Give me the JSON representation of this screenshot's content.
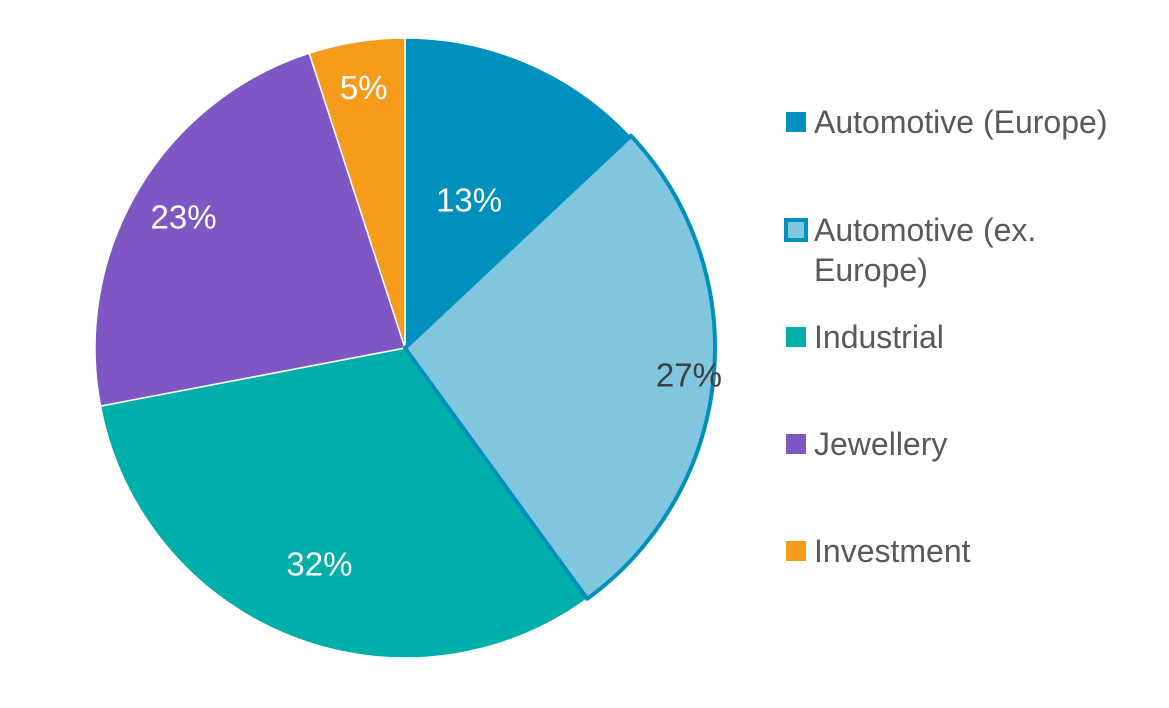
{
  "chart_data": {
    "type": "pie",
    "title": "",
    "categories": [
      "Automotive (Europe)",
      "Automotive (ex. Europe)",
      "Industrial",
      "Jewellery",
      "Investment"
    ],
    "values": [
      13,
      27,
      32,
      23,
      5
    ],
    "labels": [
      "13%",
      "27%",
      "32%",
      "23%",
      "5%"
    ],
    "colors": [
      "#0090BE",
      "#7FC6DE",
      "#00AEAA",
      "#7E57C5",
      "#F79B1B"
    ],
    "label_colors": [
      "#ffffff",
      "#404040",
      "#ffffff",
      "#ffffff",
      "#ffffff"
    ],
    "legend_lines": [
      [
        "Automotive (Europe)"
      ],
      [
        "Automotive (ex.",
        "Europe)"
      ],
      [
        "Industrial"
      ],
      [
        "Jewellery"
      ],
      [
        "Investment"
      ]
    ],
    "legend_position": "right",
    "unit": "%"
  }
}
